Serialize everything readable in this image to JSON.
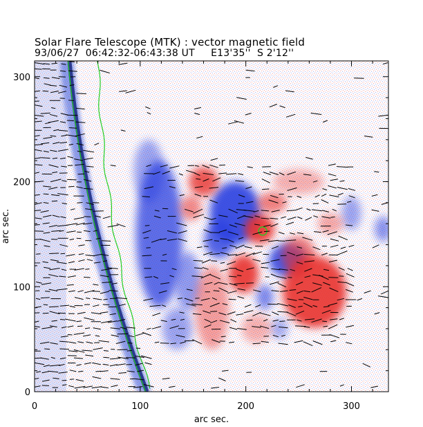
{
  "header": {
    "title": "Solar Flare Telescope (MTK) : vector magnetic field",
    "subtitle": "93/06/27  06:42:32-06:43:38 UT     E13'35''  S 2'12''"
  },
  "chart_data": {
    "type": "heatmap",
    "title": "Solar Flare Telescope (MTK) : vector magnetic field",
    "subtitle": "93/06/27  06:42:32-06:43:38 UT     E13'35''  S 2'12''",
    "xlabel": "arc sec.",
    "ylabel": "arc sec.",
    "xlim": [
      0,
      335
    ],
    "ylim": [
      0,
      315
    ],
    "xticks": [
      0,
      100,
      200,
      300
    ],
    "yticks": [
      0,
      100,
      200,
      300
    ],
    "colors": {
      "positive_polarity": "#e8302f",
      "negative_polarity": "#2a3fe0",
      "limb_contour": "#22cc22",
      "vectors": "#000000"
    },
    "features": [
      {
        "name": "negative-region-left",
        "x": 120,
        "y": 150,
        "sign": "negative"
      },
      {
        "name": "negative-region-center",
        "x": 185,
        "y": 160,
        "sign": "negative"
      },
      {
        "name": "negative-region-right",
        "x": 235,
        "y": 120,
        "sign": "negative"
      },
      {
        "name": "positive-region-upper",
        "x": 160,
        "y": 195,
        "sign": "positive"
      },
      {
        "name": "positive-region-spot",
        "x": 215,
        "y": 150,
        "sign": "positive"
      },
      {
        "name": "positive-region-lower",
        "x": 265,
        "y": 95,
        "sign": "positive"
      },
      {
        "name": "positive-region-mid",
        "x": 200,
        "y": 110,
        "sign": "positive"
      }
    ]
  }
}
